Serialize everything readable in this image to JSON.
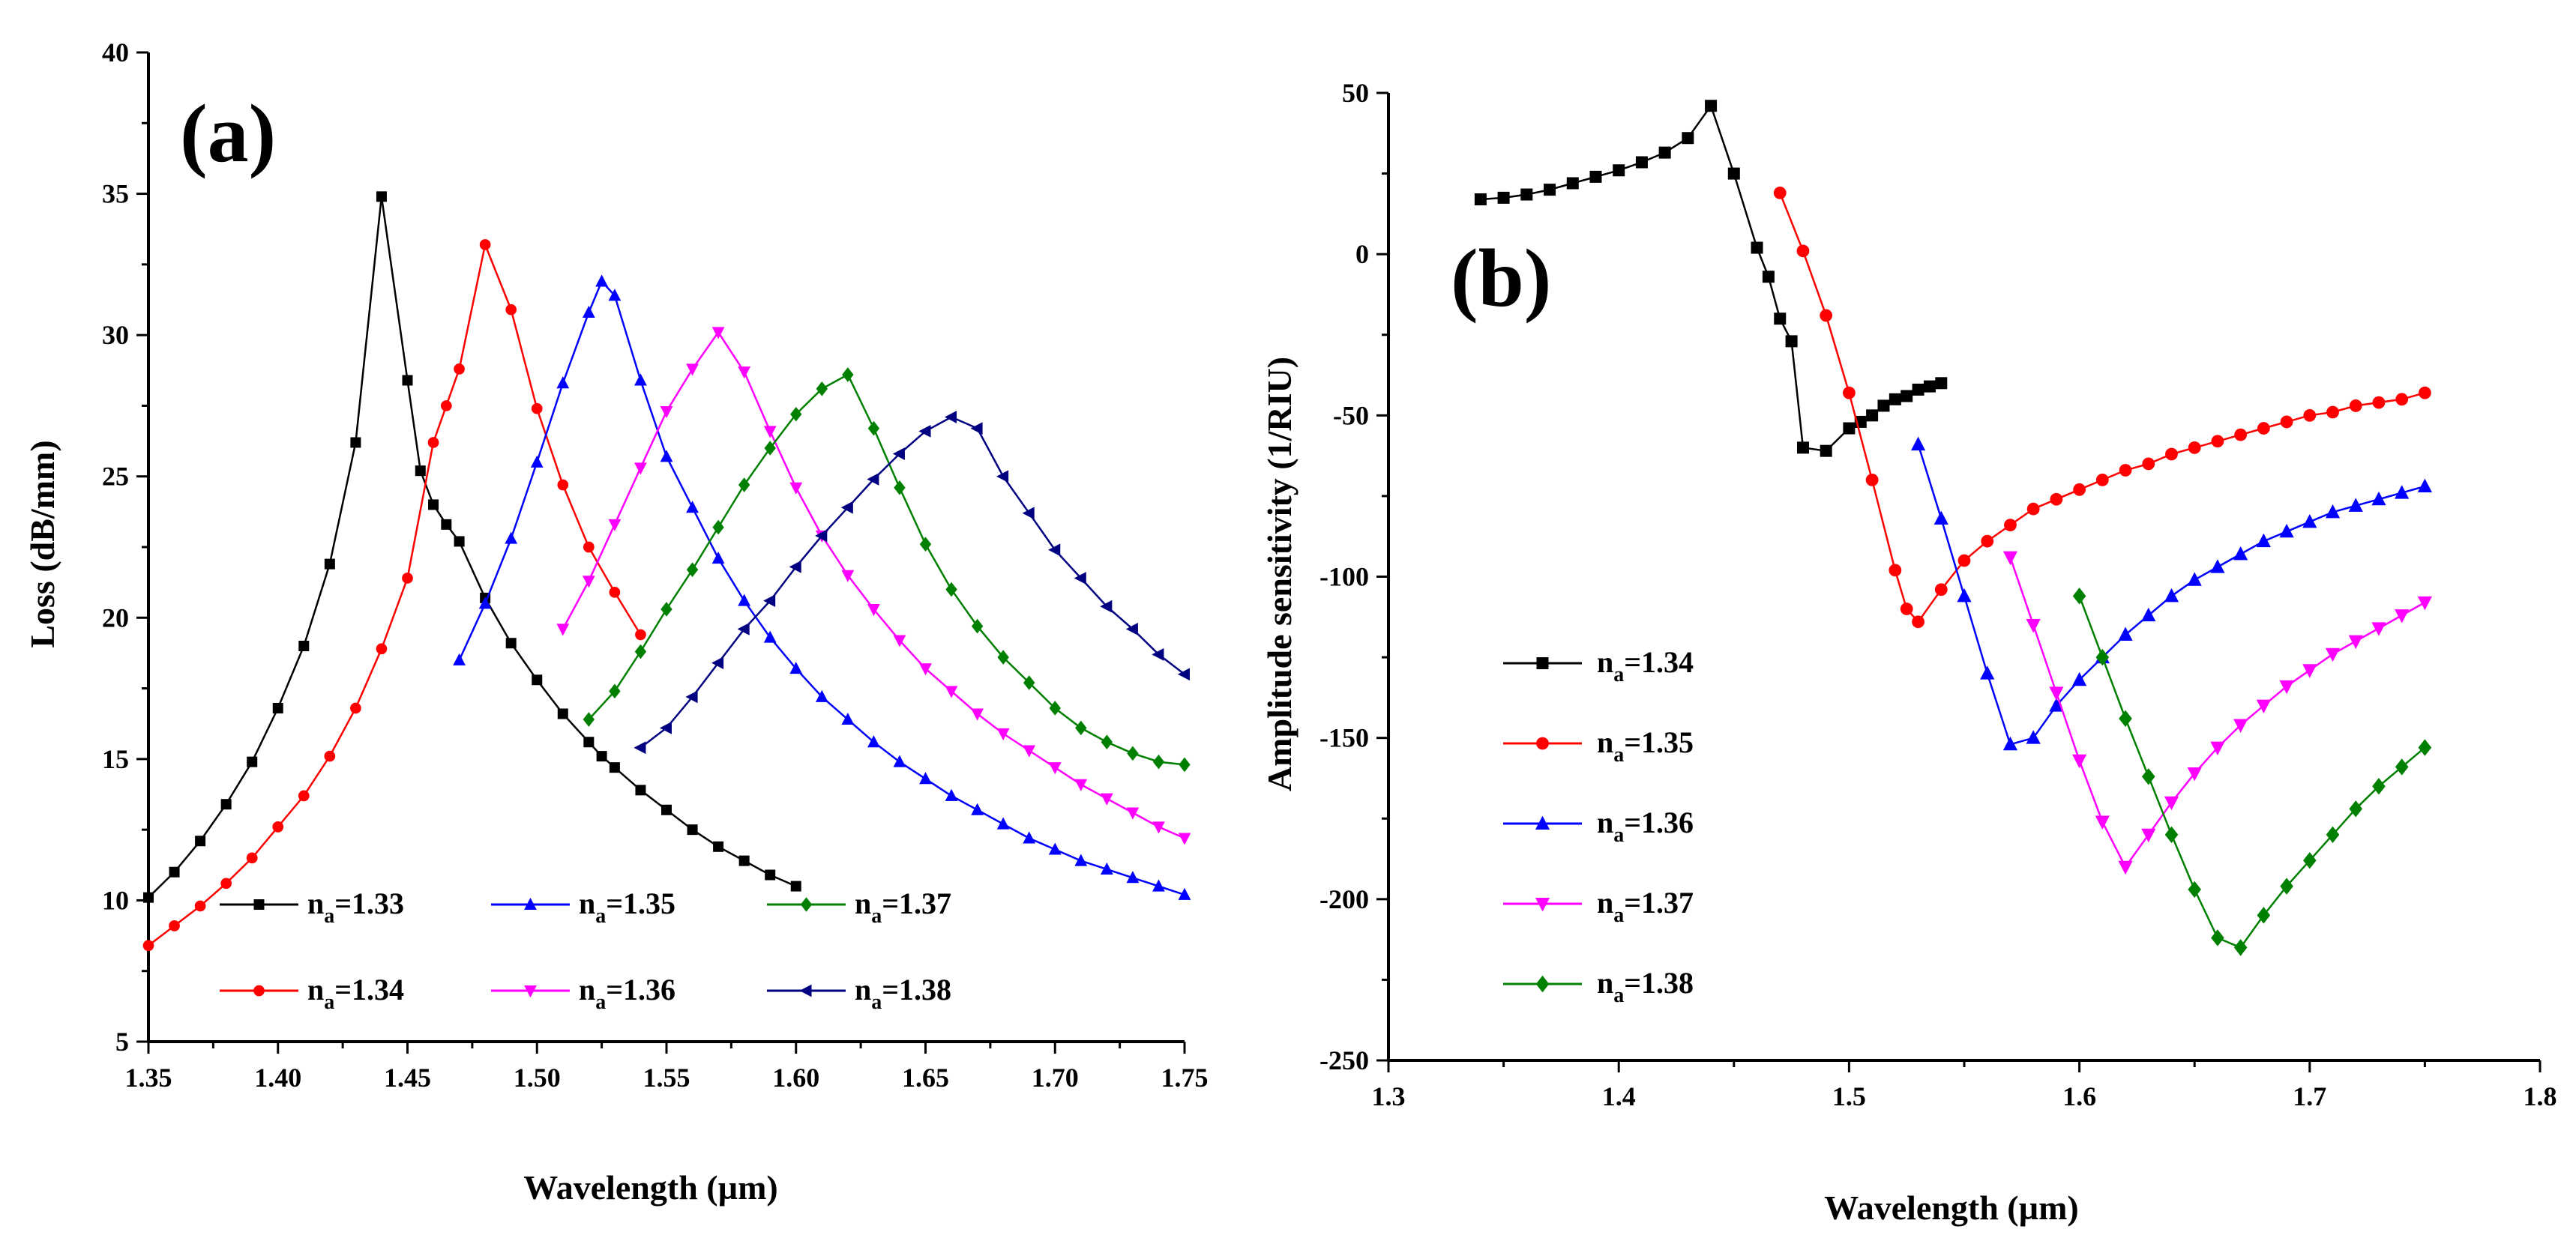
{
  "chart_data": [
    {
      "type": "line",
      "panel_label": "(a)",
      "xlabel": "Wavelength (µm)",
      "ylabel": "Loss (dB/mm)",
      "xlim": [
        1.35,
        1.75
      ],
      "ylim": [
        5,
        40
      ],
      "xticks": [
        1.35,
        1.4,
        1.45,
        1.5,
        1.55,
        1.6,
        1.65,
        1.7,
        1.75
      ],
      "xtick_labels": [
        "1.35",
        "1.40",
        "1.45",
        "1.50",
        "1.55",
        "1.60",
        "1.65",
        "1.70",
        "1.75"
      ],
      "yticks": [
        5,
        10,
        15,
        20,
        25,
        30,
        35,
        40
      ],
      "ytick_labels": [
        "5",
        "10",
        "15",
        "20",
        "25",
        "30",
        "35",
        "40"
      ],
      "legend_position": "lower-center",
      "series": [
        {
          "name": "n_a=1.33",
          "prefix": "n",
          "sub": "a",
          "suffix": "=1.33",
          "color": "#000000",
          "marker": "square",
          "x": [
            1.35,
            1.36,
            1.37,
            1.38,
            1.39,
            1.4,
            1.41,
            1.42,
            1.43,
            1.44,
            1.45,
            1.455,
            1.46,
            1.465,
            1.47,
            1.48,
            1.49,
            1.5,
            1.51,
            1.52,
            1.525,
            1.53,
            1.54,
            1.55,
            1.56,
            1.57,
            1.58,
            1.59,
            1.6
          ],
          "y": [
            10.1,
            11.0,
            12.1,
            13.4,
            14.9,
            16.8,
            19.0,
            21.9,
            26.2,
            34.9,
            28.4,
            25.2,
            24.0,
            23.3,
            22.7,
            20.7,
            19.1,
            17.8,
            16.6,
            15.6,
            15.1,
            14.7,
            13.9,
            13.2,
            12.5,
            11.9,
            11.4,
            10.9,
            10.5
          ]
        },
        {
          "name": "n_a=1.34",
          "prefix": "n",
          "sub": "a",
          "suffix": "=1.34",
          "color": "#ff0000",
          "marker": "circle",
          "x": [
            1.35,
            1.36,
            1.37,
            1.38,
            1.39,
            1.4,
            1.41,
            1.42,
            1.43,
            1.44,
            1.45,
            1.46,
            1.465,
            1.47,
            1.48,
            1.49,
            1.5,
            1.51,
            1.52,
            1.53,
            1.54
          ],
          "y": [
            8.4,
            9.1,
            9.8,
            10.6,
            11.5,
            12.6,
            13.7,
            15.1,
            16.8,
            18.9,
            21.4,
            26.2,
            27.5,
            28.8,
            33.2,
            30.9,
            27.4,
            24.7,
            22.5,
            20.9,
            19.4
          ]
        },
        {
          "name": "n_a=1.35",
          "prefix": "n",
          "sub": "a",
          "suffix": "=1.35",
          "color": "#0000ff",
          "marker": "triangle-up",
          "x": [
            1.47,
            1.48,
            1.49,
            1.5,
            1.51,
            1.52,
            1.525,
            1.53,
            1.54,
            1.55,
            1.56,
            1.57,
            1.58,
            1.59,
            1.6,
            1.61,
            1.62,
            1.63,
            1.64,
            1.65,
            1.66,
            1.67,
            1.68,
            1.69,
            1.7,
            1.71,
            1.72,
            1.73,
            1.74,
            1.75
          ],
          "y": [
            18.5,
            20.5,
            22.8,
            25.5,
            28.3,
            30.8,
            31.9,
            31.4,
            28.4,
            25.7,
            23.9,
            22.1,
            20.6,
            19.3,
            18.2,
            17.2,
            16.4,
            15.6,
            14.9,
            14.3,
            13.7,
            13.2,
            12.7,
            12.2,
            11.8,
            11.4,
            11.1,
            10.8,
            10.5,
            10.2
          ]
        },
        {
          "name": "n_a=1.36",
          "prefix": "n",
          "sub": "a",
          "suffix": "=1.36",
          "color": "#ff00ff",
          "marker": "triangle-down",
          "x": [
            1.51,
            1.52,
            1.53,
            1.54,
            1.55,
            1.56,
            1.57,
            1.58,
            1.59,
            1.6,
            1.61,
            1.62,
            1.63,
            1.64,
            1.65,
            1.66,
            1.67,
            1.68,
            1.69,
            1.7,
            1.71,
            1.72,
            1.73,
            1.74,
            1.75
          ],
          "y": [
            19.6,
            21.3,
            23.3,
            25.3,
            27.3,
            28.8,
            30.1,
            28.7,
            26.6,
            24.6,
            22.9,
            21.5,
            20.3,
            19.2,
            18.2,
            17.4,
            16.6,
            15.9,
            15.3,
            14.7,
            14.1,
            13.6,
            13.1,
            12.6,
            12.2
          ]
        },
        {
          "name": "n_a=1.37",
          "prefix": "n",
          "sub": "a",
          "suffix": "=1.37",
          "color": "#008000",
          "marker": "diamond",
          "x": [
            1.52,
            1.53,
            1.54,
            1.55,
            1.56,
            1.57,
            1.58,
            1.59,
            1.6,
            1.61,
            1.62,
            1.63,
            1.64,
            1.65,
            1.66,
            1.67,
            1.68,
            1.69,
            1.7,
            1.71,
            1.72,
            1.73,
            1.74,
            1.75
          ],
          "y": [
            16.4,
            17.4,
            18.8,
            20.3,
            21.7,
            23.2,
            24.7,
            26.0,
            27.2,
            28.1,
            28.6,
            26.7,
            24.6,
            22.6,
            21.0,
            19.7,
            18.6,
            17.7,
            16.8,
            16.1,
            15.6,
            15.2,
            14.9,
            14.8
          ]
        },
        {
          "name": "n_a=1.38",
          "prefix": "n",
          "sub": "a",
          "suffix": "=1.38",
          "color": "#000080",
          "marker": "triangle-left",
          "x": [
            1.54,
            1.55,
            1.56,
            1.57,
            1.58,
            1.59,
            1.6,
            1.61,
            1.62,
            1.63,
            1.64,
            1.65,
            1.66,
            1.67,
            1.68,
            1.69,
            1.7,
            1.71,
            1.72,
            1.73,
            1.74,
            1.75
          ],
          "y": [
            15.4,
            16.1,
            17.2,
            18.4,
            19.6,
            20.6,
            21.8,
            22.9,
            23.9,
            24.9,
            25.8,
            26.6,
            27.1,
            26.7,
            25.0,
            23.7,
            22.4,
            21.4,
            20.4,
            19.6,
            18.7,
            18.0
          ]
        }
      ]
    },
    {
      "type": "line",
      "panel_label": "(b)",
      "xlabel": "Wavelength (µm)",
      "ylabel": "Amplitude sensitivity (1/RIU)",
      "xlim": [
        1.3,
        1.8
      ],
      "ylim": [
        -250,
        50
      ],
      "xticks": [
        1.3,
        1.4,
        1.5,
        1.6,
        1.7,
        1.8
      ],
      "xtick_labels": [
        "1.3",
        "1.4",
        "1.5",
        "1.6",
        "1.7",
        "1.8"
      ],
      "yticks": [
        -250,
        -200,
        -150,
        -100,
        -50,
        0,
        50
      ],
      "ytick_labels": [
        "-250",
        "-200",
        "-150",
        "-100",
        "-50",
        "0",
        "50"
      ],
      "legend_position": "left",
      "series": [
        {
          "name": "n_a=1.34",
          "prefix": "n",
          "sub": "a",
          "suffix": "=1.34",
          "color": "#000000",
          "marker": "square",
          "x": [
            1.34,
            1.35,
            1.36,
            1.37,
            1.38,
            1.39,
            1.4,
            1.41,
            1.42,
            1.43,
            1.44,
            1.45,
            1.46,
            1.465,
            1.47,
            1.475,
            1.48,
            1.49,
            1.5,
            1.505,
            1.51,
            1.515,
            1.52,
            1.525,
            1.53,
            1.535,
            1.54
          ],
          "y": [
            17,
            17.5,
            18.5,
            20,
            22,
            24,
            26,
            28.5,
            31.5,
            36,
            46,
            25,
            2,
            -7,
            -20,
            -27,
            -60,
            -61,
            -54,
            -52,
            -50,
            -47,
            -45,
            -44,
            -42,
            -41,
            -40
          ]
        },
        {
          "name": "n_a=1.35",
          "prefix": "n",
          "sub": "a",
          "suffix": "=1.35",
          "color": "#ff0000",
          "marker": "circle",
          "x": [
            1.47,
            1.48,
            1.49,
            1.5,
            1.51,
            1.52,
            1.525,
            1.53,
            1.54,
            1.55,
            1.56,
            1.57,
            1.58,
            1.59,
            1.6,
            1.61,
            1.62,
            1.63,
            1.64,
            1.65,
            1.66,
            1.67,
            1.68,
            1.69,
            1.7,
            1.71,
            1.72,
            1.73,
            1.74,
            1.75
          ],
          "y": [
            19,
            1,
            -19,
            -43,
            -70,
            -98,
            -110,
            -114,
            -104,
            -95,
            -89,
            -84,
            -79,
            -76,
            -73,
            -70,
            -67,
            -65,
            -62,
            -60,
            -58,
            -56,
            -54,
            -52,
            -50,
            -49,
            -47,
            -46,
            -45,
            -43
          ]
        },
        {
          "name": "n_a=1.36",
          "prefix": "n",
          "sub": "a",
          "suffix": "=1.36",
          "color": "#0000ff",
          "marker": "triangle-up",
          "x": [
            1.53,
            1.54,
            1.55,
            1.56,
            1.57,
            1.58,
            1.59,
            1.6,
            1.61,
            1.62,
            1.63,
            1.64,
            1.65,
            1.66,
            1.67,
            1.68,
            1.69,
            1.7,
            1.71,
            1.72,
            1.73,
            1.74,
            1.75
          ],
          "y": [
            -59,
            -82,
            -106,
            -130,
            -152,
            -150,
            -140,
            -132,
            -125,
            -118,
            -112,
            -106,
            -101,
            -97,
            -93,
            -89,
            -86,
            -83,
            -80,
            -78,
            -76,
            -74,
            -72
          ]
        },
        {
          "name": "n_a=1.37",
          "prefix": "n",
          "sub": "a",
          "suffix": "=1.37",
          "color": "#ff00ff",
          "marker": "triangle-down",
          "x": [
            1.57,
            1.58,
            1.59,
            1.6,
            1.61,
            1.62,
            1.63,
            1.64,
            1.65,
            1.66,
            1.67,
            1.68,
            1.69,
            1.7,
            1.71,
            1.72,
            1.73,
            1.74,
            1.75
          ],
          "y": [
            -94,
            -115,
            -136,
            -157,
            -176,
            -190,
            -180,
            -170,
            -161,
            -153,
            -146,
            -140,
            -134,
            -129,
            -124,
            -120,
            -116,
            -112,
            -108
          ]
        },
        {
          "name": "n_a=1.38",
          "prefix": "n",
          "sub": "a",
          "suffix": "=1.38",
          "color": "#008000",
          "marker": "diamond",
          "x": [
            1.6,
            1.61,
            1.62,
            1.63,
            1.64,
            1.65,
            1.66,
            1.67,
            1.68,
            1.69,
            1.7,
            1.71,
            1.72,
            1.73,
            1.74,
            1.75
          ],
          "y": [
            -106,
            -125,
            -144,
            -162,
            -180,
            -197,
            -212,
            -215,
            -205,
            -196,
            -188,
            -180,
            -172,
            -165,
            -159,
            -153
          ]
        }
      ]
    }
  ]
}
